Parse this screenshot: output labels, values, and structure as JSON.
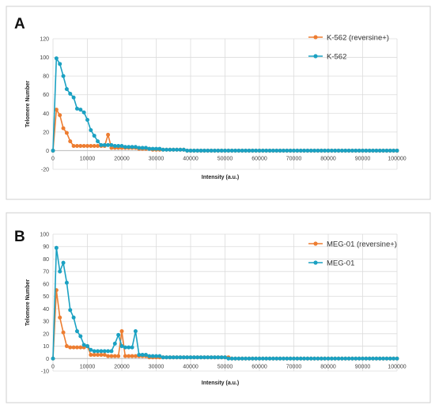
{
  "chart_data": [
    {
      "panel": "A",
      "type": "line",
      "xlabel": "Intensity (a.u.)",
      "ylabel": "Telomere Number",
      "xlim": [
        0,
        100000
      ],
      "ylim": [
        -20,
        120
      ],
      "x_ticks": [
        0,
        10000,
        20000,
        30000,
        40000,
        50000,
        60000,
        70000,
        80000,
        90000,
        100000
      ],
      "y_ticks": [
        -20,
        0,
        20,
        40,
        60,
        80,
        100,
        120
      ],
      "grid": true,
      "legend_position": "top-right",
      "series": [
        {
          "name": "K-562 (reversine+)",
          "color": "#ED7D31",
          "x": [
            0,
            1000,
            2000,
            3000,
            4000,
            5000,
            6000,
            7000,
            8000,
            9000,
            10000,
            11000,
            12000,
            13000,
            14000,
            15000,
            16000,
            17000,
            18000,
            19000,
            20000,
            21000,
            22000,
            23000,
            24000,
            25000,
            26000,
            27000,
            28000,
            29000,
            30000,
            31000,
            32000,
            33000,
            34000,
            35000,
            36000,
            37000,
            38000,
            39000,
            40000,
            41000,
            42000,
            43000,
            44000,
            45000,
            46000,
            47000,
            48000,
            49000,
            50000,
            51000,
            52000,
            53000,
            54000,
            55000,
            56000,
            57000,
            58000,
            59000,
            60000,
            61000,
            62000,
            63000,
            64000,
            65000,
            66000,
            67000,
            68000,
            69000,
            70000,
            71000,
            72000,
            73000,
            74000,
            75000,
            76000,
            77000,
            78000,
            79000,
            80000,
            81000,
            82000,
            83000,
            84000,
            85000,
            86000,
            87000,
            88000,
            89000,
            90000,
            91000,
            92000,
            93000,
            94000,
            95000,
            96000,
            97000,
            98000,
            99000,
            100000
          ],
          "y": [
            0,
            44,
            38,
            24,
            19,
            10,
            5,
            5,
            5,
            5,
            5,
            5,
            5,
            5,
            5,
            5,
            17,
            3,
            3,
            3,
            3,
            3,
            3,
            3,
            3,
            2,
            2,
            2,
            2,
            1,
            1,
            1,
            1,
            1,
            1,
            1,
            1,
            1,
            1,
            0,
            0,
            0,
            0,
            0,
            0,
            0,
            0,
            0,
            0,
            0,
            0,
            0,
            0,
            0,
            0,
            0,
            0,
            0,
            0,
            0,
            0,
            0,
            0,
            0,
            0,
            0,
            0,
            0,
            0,
            0,
            0,
            0,
            0,
            0,
            0,
            0,
            0,
            0,
            0,
            0,
            0,
            0,
            0,
            0,
            0,
            0,
            0,
            0,
            0,
            0,
            0,
            0,
            0,
            0,
            0,
            0,
            0,
            0,
            0,
            0,
            0
          ]
        },
        {
          "name": "K-562",
          "color": "#1BA1C2",
          "x": [
            0,
            1000,
            2000,
            3000,
            4000,
            5000,
            6000,
            7000,
            8000,
            9000,
            10000,
            11000,
            12000,
            13000,
            14000,
            15000,
            16000,
            17000,
            18000,
            19000,
            20000,
            21000,
            22000,
            23000,
            24000,
            25000,
            26000,
            27000,
            28000,
            29000,
            30000,
            31000,
            32000,
            33000,
            34000,
            35000,
            36000,
            37000,
            38000,
            39000,
            40000,
            41000,
            42000,
            43000,
            44000,
            45000,
            46000,
            47000,
            48000,
            49000,
            50000,
            51000,
            52000,
            53000,
            54000,
            55000,
            56000,
            57000,
            58000,
            59000,
            60000,
            61000,
            62000,
            63000,
            64000,
            65000,
            66000,
            67000,
            68000,
            69000,
            70000,
            71000,
            72000,
            73000,
            74000,
            75000,
            76000,
            77000,
            78000,
            79000,
            80000,
            81000,
            82000,
            83000,
            84000,
            85000,
            86000,
            87000,
            88000,
            89000,
            90000,
            91000,
            92000,
            93000,
            94000,
            95000,
            96000,
            97000,
            98000,
            99000,
            100000
          ],
          "y": [
            0,
            99,
            93,
            80,
            66,
            61,
            57,
            45,
            44,
            41,
            33,
            22,
            16,
            10,
            6,
            6,
            6,
            6,
            5,
            5,
            5,
            4,
            4,
            4,
            4,
            3,
            3,
            3,
            2,
            2,
            2,
            2,
            1,
            1,
            1,
            1,
            1,
            1,
            1,
            0,
            0,
            0,
            0,
            0,
            0,
            0,
            0,
            0,
            0,
            0,
            0,
            0,
            0,
            0,
            0,
            0,
            0,
            0,
            0,
            0,
            0,
            0,
            0,
            0,
            0,
            0,
            0,
            0,
            0,
            0,
            0,
            0,
            0,
            0,
            0,
            0,
            0,
            0,
            0,
            0,
            0,
            0,
            0,
            0,
            0,
            0,
            0,
            0,
            0,
            0,
            0,
            0,
            0,
            0,
            0,
            0,
            0,
            0,
            0,
            0,
            0
          ]
        }
      ]
    },
    {
      "panel": "B",
      "type": "line",
      "xlabel": "Intensity (a.u.)",
      "ylabel": "Telomere Number",
      "xlim": [
        0,
        100000
      ],
      "ylim": [
        -10,
        100
      ],
      "x_ticks": [
        0,
        10000,
        20000,
        30000,
        40000,
        50000,
        60000,
        70000,
        80000,
        90000,
        100000
      ],
      "y_ticks": [
        -10,
        0,
        10,
        20,
        30,
        40,
        50,
        60,
        70,
        80,
        90,
        100
      ],
      "grid": true,
      "legend_position": "top-right",
      "series": [
        {
          "name": "MEG-01 (reversine+)",
          "color": "#ED7D31",
          "x": [
            0,
            1000,
            2000,
            3000,
            4000,
            5000,
            6000,
            7000,
            8000,
            9000,
            10000,
            11000,
            12000,
            13000,
            14000,
            15000,
            16000,
            17000,
            18000,
            19000,
            20000,
            21000,
            22000,
            23000,
            24000,
            25000,
            26000,
            27000,
            28000,
            29000,
            30000,
            31000,
            32000,
            33000,
            34000,
            35000,
            36000,
            37000,
            38000,
            39000,
            40000,
            41000,
            42000,
            43000,
            44000,
            45000,
            46000,
            47000,
            48000,
            49000,
            50000,
            51000,
            52000,
            53000,
            54000,
            55000,
            56000,
            57000,
            58000,
            59000,
            60000,
            61000,
            62000,
            63000,
            64000,
            65000,
            66000,
            67000,
            68000,
            69000,
            70000,
            71000,
            72000,
            73000,
            74000,
            75000,
            76000,
            77000,
            78000,
            79000,
            80000,
            81000,
            82000,
            83000,
            84000,
            85000,
            86000,
            87000,
            88000,
            89000,
            90000,
            91000,
            92000,
            93000,
            94000,
            95000,
            96000,
            97000,
            98000,
            99000,
            100000
          ],
          "y": [
            0,
            55,
            33,
            21,
            10,
            9,
            9,
            9,
            9,
            9,
            10,
            3,
            3,
            3,
            3,
            3,
            2,
            2,
            2,
            2,
            22,
            2,
            2,
            2,
            2,
            2,
            2,
            2,
            1,
            1,
            1,
            1,
            1,
            1,
            1,
            1,
            1,
            1,
            1,
            1,
            1,
            1,
            1,
            1,
            1,
            1,
            1,
            1,
            1,
            1,
            1,
            1,
            0,
            0,
            0,
            0,
            0,
            0,
            0,
            0,
            0,
            0,
            0,
            0,
            0,
            0,
            0,
            0,
            0,
            0,
            0,
            0,
            0,
            0,
            0,
            0,
            0,
            0,
            0,
            0,
            0,
            0,
            0,
            0,
            0,
            0,
            0,
            0,
            0,
            0,
            0,
            0,
            0,
            0,
            0,
            0,
            0,
            0,
            0,
            0,
            0
          ]
        },
        {
          "name": "MEG-01",
          "color": "#1BA1C2",
          "x": [
            0,
            1000,
            2000,
            3000,
            4000,
            5000,
            6000,
            7000,
            8000,
            9000,
            10000,
            11000,
            12000,
            13000,
            14000,
            15000,
            16000,
            17000,
            18000,
            19000,
            20000,
            21000,
            22000,
            23000,
            24000,
            25000,
            26000,
            27000,
            28000,
            29000,
            30000,
            31000,
            32000,
            33000,
            34000,
            35000,
            36000,
            37000,
            38000,
            39000,
            40000,
            41000,
            42000,
            43000,
            44000,
            45000,
            46000,
            47000,
            48000,
            49000,
            50000,
            51000,
            52000,
            53000,
            54000,
            55000,
            56000,
            57000,
            58000,
            59000,
            60000,
            61000,
            62000,
            63000,
            64000,
            65000,
            66000,
            67000,
            68000,
            69000,
            70000,
            71000,
            72000,
            73000,
            74000,
            75000,
            76000,
            77000,
            78000,
            79000,
            80000,
            81000,
            82000,
            83000,
            84000,
            85000,
            86000,
            87000,
            88000,
            89000,
            90000,
            91000,
            92000,
            93000,
            94000,
            95000,
            96000,
            97000,
            98000,
            99000,
            100000
          ],
          "y": [
            0,
            89,
            70,
            77,
            61,
            39,
            33,
            22,
            18,
            11,
            10,
            7,
            6,
            6,
            6,
            6,
            6,
            6,
            12,
            19,
            10,
            9,
            9,
            9,
            22,
            3,
            3,
            3,
            2,
            2,
            2,
            2,
            1,
            1,
            1,
            1,
            1,
            1,
            1,
            1,
            1,
            1,
            1,
            1,
            1,
            1,
            1,
            1,
            1,
            1,
            1,
            0,
            0,
            0,
            0,
            0,
            0,
            0,
            0,
            0,
            0,
            0,
            0,
            0,
            0,
            0,
            0,
            0,
            0,
            0,
            0,
            0,
            0,
            0,
            0,
            0,
            0,
            0,
            0,
            0,
            0,
            0,
            0,
            0,
            0,
            0,
            0,
            0,
            0,
            0,
            0,
            0,
            0,
            0,
            0,
            0,
            0,
            0,
            0,
            0,
            0
          ]
        }
      ]
    }
  ]
}
